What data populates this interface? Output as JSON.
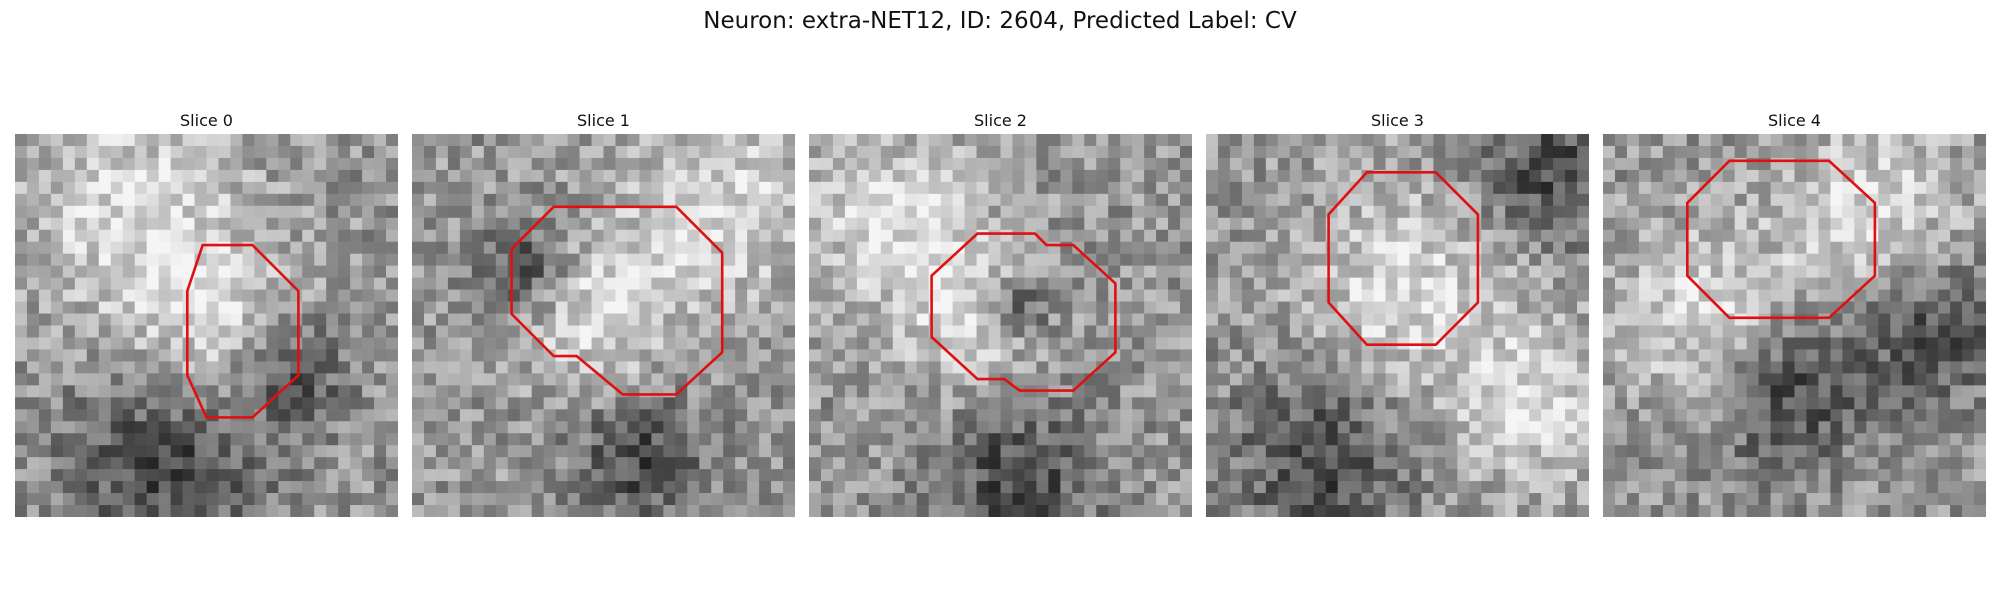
{
  "figure": {
    "title": "Neuron: extra-NET12, ID: 2604, Predicted Label: CV",
    "outline_color": "#e01010",
    "background_color": "#ffffff"
  },
  "panels": [
    {
      "title": "Slice 0",
      "roi_outline": [
        [
          0.49,
          0.29
        ],
        [
          0.62,
          0.29
        ],
        [
          0.74,
          0.41
        ],
        [
          0.74,
          0.63
        ],
        [
          0.62,
          0.74
        ],
        [
          0.56,
          0.74
        ],
        [
          0.5,
          0.74
        ],
        [
          0.45,
          0.63
        ],
        [
          0.45,
          0.41
        ]
      ]
    },
    {
      "title": "Slice 1",
      "roi_outline": [
        [
          0.37,
          0.19
        ],
        [
          0.69,
          0.19
        ],
        [
          0.81,
          0.31
        ],
        [
          0.81,
          0.57
        ],
        [
          0.69,
          0.68
        ],
        [
          0.55,
          0.68
        ],
        [
          0.43,
          0.58
        ],
        [
          0.37,
          0.58
        ],
        [
          0.26,
          0.47
        ],
        [
          0.26,
          0.3
        ]
      ]
    },
    {
      "title": "Slice 2",
      "roi_outline": [
        [
          0.44,
          0.26
        ],
        [
          0.59,
          0.26
        ],
        [
          0.62,
          0.29
        ],
        [
          0.69,
          0.29
        ],
        [
          0.8,
          0.39
        ],
        [
          0.8,
          0.57
        ],
        [
          0.69,
          0.67
        ],
        [
          0.55,
          0.67
        ],
        [
          0.51,
          0.64
        ],
        [
          0.44,
          0.64
        ],
        [
          0.32,
          0.53
        ],
        [
          0.32,
          0.37
        ]
      ]
    },
    {
      "title": "Slice 3",
      "roi_outline": [
        [
          0.42,
          0.1
        ],
        [
          0.6,
          0.1
        ],
        [
          0.71,
          0.21
        ],
        [
          0.71,
          0.44
        ],
        [
          0.6,
          0.55
        ],
        [
          0.42,
          0.55
        ],
        [
          0.32,
          0.44
        ],
        [
          0.32,
          0.21
        ]
      ]
    },
    {
      "title": "Slice 4",
      "roi_outline": [
        [
          0.33,
          0.07
        ],
        [
          0.59,
          0.07
        ],
        [
          0.71,
          0.18
        ],
        [
          0.71,
          0.37
        ],
        [
          0.59,
          0.48
        ],
        [
          0.33,
          0.48
        ],
        [
          0.22,
          0.37
        ],
        [
          0.22,
          0.18
        ]
      ]
    }
  ]
}
